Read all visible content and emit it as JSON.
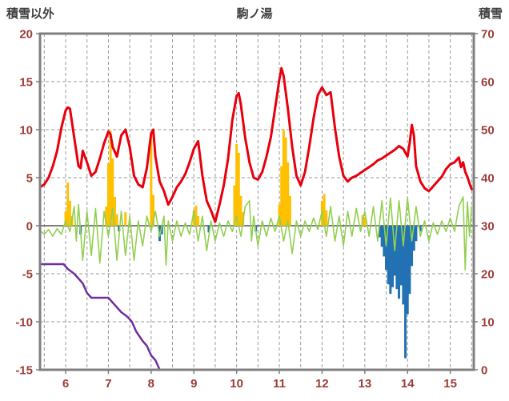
{
  "header": {
    "left_axis_title": "積雪以外",
    "chart_title": "駒ノ湯",
    "right_axis_title": "積雪"
  },
  "chart_data": {
    "type": "line",
    "title": "駒ノ湯",
    "left_axis_label": "積雪以外",
    "right_axis_label": "積雪",
    "x_range": [
      5.4,
      15.55
    ],
    "x_ticks": [
      6,
      7,
      8,
      9,
      10,
      11,
      12,
      13,
      14,
      15
    ],
    "x_grid_step": 0.5,
    "left_ylim": [
      -15,
      20
    ],
    "left_yticks": [
      20,
      15,
      10,
      5,
      0,
      -5,
      -10,
      -15
    ],
    "right_ylim": [
      0,
      70
    ],
    "right_yticks": [
      70,
      60,
      50,
      40,
      30,
      20,
      10,
      0
    ],
    "grid": true,
    "legend": "none",
    "colors": {
      "red_line": "#e8000d",
      "green_line": "#92d050",
      "orange_bars": "#ffc000",
      "blue_bars": "#2271b3",
      "purple_line": "#7030a0",
      "frame": "#7f7f7f",
      "grid": "#9a9a9a",
      "zero_line": "#7f7f7f",
      "tick_text": "#9c3d38",
      "title_text": "#3f3f3f"
    },
    "series": [
      {
        "name": "orange-bars",
        "type": "bar",
        "axis": "left",
        "color_key": "orange_bars",
        "points": [
          [
            6.0,
            1.5
          ],
          [
            6.05,
            4.5
          ],
          [
            6.1,
            2.6
          ],
          [
            6.15,
            1.0
          ],
          [
            6.95,
            2.0
          ],
          [
            7.0,
            6.5
          ],
          [
            7.05,
            9.9
          ],
          [
            7.1,
            7.0
          ],
          [
            7.15,
            3.0
          ],
          [
            7.2,
            1.2
          ],
          [
            7.4,
            1.4
          ],
          [
            8.0,
            9.7
          ],
          [
            8.05,
            3.2
          ],
          [
            9.0,
            1.6
          ],
          [
            9.05,
            2.1
          ],
          [
            9.1,
            1.0
          ],
          [
            9.95,
            4.2
          ],
          [
            10.0,
            8.5
          ],
          [
            10.05,
            7.6
          ],
          [
            10.1,
            3.1
          ],
          [
            10.15,
            1.4
          ],
          [
            11.0,
            2.2
          ],
          [
            11.05,
            6.2
          ],
          [
            11.1,
            10.0
          ],
          [
            11.15,
            9.2
          ],
          [
            11.2,
            6.6
          ],
          [
            11.25,
            3.1
          ],
          [
            12.0,
            2.6
          ],
          [
            12.05,
            3.3
          ],
          [
            12.1,
            1.6
          ],
          [
            12.95,
            1.1
          ],
          [
            13.0,
            0.9
          ]
        ]
      },
      {
        "name": "blue-bars",
        "type": "bar",
        "axis": "left",
        "color_key": "blue_bars",
        "points": [
          [
            6.35,
            -0.9
          ],
          [
            7.25,
            -0.6
          ],
          [
            8.2,
            -1.6
          ],
          [
            8.25,
            -0.9
          ],
          [
            9.35,
            -0.7
          ],
          [
            10.45,
            -0.6
          ],
          [
            13.35,
            -1.2
          ],
          [
            13.4,
            -2.2
          ],
          [
            13.45,
            -3.2
          ],
          [
            13.5,
            -4.6
          ],
          [
            13.55,
            -6.1
          ],
          [
            13.6,
            -7.1
          ],
          [
            13.65,
            -6.4
          ],
          [
            13.7,
            -5.2
          ],
          [
            13.75,
            -6.6
          ],
          [
            13.8,
            -7.6
          ],
          [
            13.85,
            -6.2
          ],
          [
            13.9,
            -8.2
          ],
          [
            13.95,
            -13.8
          ],
          [
            14.0,
            -9.2
          ],
          [
            14.05,
            -7.1
          ],
          [
            14.1,
            -4.2
          ],
          [
            14.15,
            -2.6
          ],
          [
            14.2,
            -1.6
          ],
          [
            14.3,
            -0.6
          ]
        ]
      },
      {
        "name": "green-line",
        "type": "line",
        "axis": "left",
        "color_key": "green_line",
        "width": 1.6,
        "points": [
          [
            5.4,
            -0.5
          ],
          [
            5.5,
            -0.9
          ],
          [
            5.6,
            -0.4
          ],
          [
            5.7,
            -1.1
          ],
          [
            5.8,
            -0.3
          ],
          [
            5.9,
            -0.9
          ],
          [
            6.0,
            0.5
          ],
          [
            6.1,
            -0.6
          ],
          [
            6.2,
            2.0
          ],
          [
            6.25,
            -1.6
          ],
          [
            6.3,
            2.2
          ],
          [
            6.4,
            -3.6
          ],
          [
            6.5,
            1.5
          ],
          [
            6.6,
            -3.1
          ],
          [
            6.7,
            1.8
          ],
          [
            6.8,
            -3.9
          ],
          [
            6.9,
            1.5
          ],
          [
            7.0,
            -1.1
          ],
          [
            7.1,
            1.8
          ],
          [
            7.2,
            -3.6
          ],
          [
            7.3,
            1.5
          ],
          [
            7.4,
            -3.1
          ],
          [
            7.5,
            1.0
          ],
          [
            7.6,
            -3.6
          ],
          [
            7.7,
            0.5
          ],
          [
            7.8,
            -2.1
          ],
          [
            7.9,
            1.0
          ],
          [
            8.0,
            -0.6
          ],
          [
            8.1,
            1.5
          ],
          [
            8.2,
            -1.1
          ],
          [
            8.3,
            1.0
          ],
          [
            8.35,
            -4.1
          ],
          [
            8.4,
            0.5
          ],
          [
            8.5,
            -1.6
          ],
          [
            8.6,
            0.5
          ],
          [
            8.7,
            -1.1
          ],
          [
            8.8,
            0.3
          ],
          [
            8.9,
            -0.9
          ],
          [
            9.0,
            1.5
          ],
          [
            9.1,
            -1.6
          ],
          [
            9.2,
            1.0
          ],
          [
            9.3,
            -2.6
          ],
          [
            9.4,
            0.5
          ],
          [
            9.5,
            -1.6
          ],
          [
            9.6,
            0.3
          ],
          [
            9.7,
            -1.1
          ],
          [
            9.8,
            0.5
          ],
          [
            9.9,
            -0.6
          ],
          [
            10.0,
            1.0
          ],
          [
            10.1,
            -1.1
          ],
          [
            10.2,
            2.0
          ],
          [
            10.3,
            2.6
          ],
          [
            10.35,
            -1.6
          ],
          [
            10.4,
            1.0
          ],
          [
            10.5,
            -2.1
          ],
          [
            10.6,
            0.5
          ],
          [
            10.7,
            -1.1
          ],
          [
            10.8,
            0.8
          ],
          [
            10.9,
            -0.6
          ],
          [
            11.0,
            1.0
          ],
          [
            11.1,
            -1.6
          ],
          [
            11.2,
            0.5
          ],
          [
            11.3,
            -2.9
          ],
          [
            11.4,
            0.5
          ],
          [
            11.5,
            -1.1
          ],
          [
            11.6,
            0.5
          ],
          [
            11.7,
            -0.6
          ],
          [
            11.8,
            0.8
          ],
          [
            11.9,
            -0.4
          ],
          [
            12.0,
            1.5
          ],
          [
            12.1,
            -1.1
          ],
          [
            12.2,
            2.0
          ],
          [
            12.3,
            -1.6
          ],
          [
            12.4,
            1.0
          ],
          [
            12.5,
            -2.1
          ],
          [
            12.6,
            1.5
          ],
          [
            12.7,
            -1.1
          ],
          [
            12.8,
            1.8
          ],
          [
            12.9,
            -0.6
          ],
          [
            13.0,
            1.5
          ],
          [
            13.1,
            -1.1
          ],
          [
            13.2,
            2.0
          ],
          [
            13.3,
            -1.6
          ],
          [
            13.4,
            2.6
          ],
          [
            13.5,
            -2.1
          ],
          [
            13.6,
            2.9
          ],
          [
            13.7,
            -2.6
          ],
          [
            13.8,
            2.6
          ],
          [
            13.9,
            -2.1
          ],
          [
            14.0,
            2.9
          ],
          [
            14.1,
            -1.6
          ],
          [
            14.2,
            2.0
          ],
          [
            14.3,
            -1.1
          ],
          [
            14.4,
            0.5
          ],
          [
            14.5,
            -1.6
          ],
          [
            14.6,
            0.3
          ],
          [
            14.7,
            -0.9
          ],
          [
            14.8,
            0.5
          ],
          [
            14.9,
            -0.6
          ],
          [
            15.0,
            0.8
          ],
          [
            15.1,
            -0.6
          ],
          [
            15.2,
            2.0
          ],
          [
            15.3,
            3.0
          ],
          [
            15.35,
            -4.6
          ],
          [
            15.4,
            2.5
          ],
          [
            15.45,
            -1.1
          ],
          [
            15.5,
            2.0
          ]
        ]
      },
      {
        "name": "purple-line",
        "type": "line",
        "axis": "right",
        "color_key": "purple_line",
        "width": 2.5,
        "points": [
          [
            5.4,
            22
          ],
          [
            5.95,
            22
          ],
          [
            6.05,
            21
          ],
          [
            6.2,
            20
          ],
          [
            6.3,
            19
          ],
          [
            6.4,
            18
          ],
          [
            6.5,
            16
          ],
          [
            6.6,
            15
          ],
          [
            7.0,
            15
          ],
          [
            7.1,
            14
          ],
          [
            7.2,
            13
          ],
          [
            7.3,
            12
          ],
          [
            7.45,
            11
          ],
          [
            7.55,
            10
          ],
          [
            7.65,
            8
          ],
          [
            7.8,
            6
          ],
          [
            7.9,
            5
          ],
          [
            8.0,
            3
          ],
          [
            8.1,
            2
          ],
          [
            8.2,
            0
          ],
          [
            15.5,
            0
          ]
        ]
      },
      {
        "name": "red-line",
        "type": "line",
        "axis": "left",
        "color_key": "red_line",
        "width": 3,
        "points": [
          [
            5.4,
            4.0
          ],
          [
            5.5,
            4.3
          ],
          [
            5.6,
            5.0
          ],
          [
            5.7,
            6.2
          ],
          [
            5.8,
            7.8
          ],
          [
            5.9,
            10.2
          ],
          [
            6.0,
            12.0
          ],
          [
            6.05,
            12.3
          ],
          [
            6.1,
            12.2
          ],
          [
            6.2,
            9.2
          ],
          [
            6.3,
            6.2
          ],
          [
            6.35,
            6.0
          ],
          [
            6.4,
            7.8
          ],
          [
            6.45,
            7.2
          ],
          [
            6.5,
            6.6
          ],
          [
            6.6,
            5.2
          ],
          [
            6.7,
            5.6
          ],
          [
            6.8,
            7.0
          ],
          [
            6.9,
            8.6
          ],
          [
            7.0,
            9.8
          ],
          [
            7.05,
            9.5
          ],
          [
            7.1,
            8.2
          ],
          [
            7.2,
            7.2
          ],
          [
            7.3,
            9.4
          ],
          [
            7.4,
            10.0
          ],
          [
            7.5,
            8.2
          ],
          [
            7.6,
            5.2
          ],
          [
            7.7,
            4.3
          ],
          [
            7.8,
            4.0
          ],
          [
            7.9,
            6.0
          ],
          [
            8.0,
            9.6
          ],
          [
            8.05,
            10.0
          ],
          [
            8.1,
            7.2
          ],
          [
            8.2,
            4.6
          ],
          [
            8.3,
            3.6
          ],
          [
            8.4,
            2.2
          ],
          [
            8.5,
            3.0
          ],
          [
            8.6,
            4.0
          ],
          [
            8.7,
            4.6
          ],
          [
            8.8,
            5.4
          ],
          [
            8.9,
            6.6
          ],
          [
            9.0,
            8.0
          ],
          [
            9.1,
            8.8
          ],
          [
            9.2,
            5.2
          ],
          [
            9.3,
            2.6
          ],
          [
            9.4,
            1.6
          ],
          [
            9.5,
            0.4
          ],
          [
            9.6,
            2.2
          ],
          [
            9.7,
            4.2
          ],
          [
            9.8,
            7.0
          ],
          [
            9.9,
            11.0
          ],
          [
            10.0,
            13.5
          ],
          [
            10.05,
            13.8
          ],
          [
            10.1,
            12.6
          ],
          [
            10.2,
            9.2
          ],
          [
            10.3,
            6.6
          ],
          [
            10.4,
            5.0
          ],
          [
            10.5,
            4.8
          ],
          [
            10.6,
            5.6
          ],
          [
            10.7,
            7.2
          ],
          [
            10.8,
            9.2
          ],
          [
            10.9,
            12.2
          ],
          [
            11.0,
            15.2
          ],
          [
            11.05,
            16.4
          ],
          [
            11.1,
            15.6
          ],
          [
            11.2,
            12.2
          ],
          [
            11.3,
            8.2
          ],
          [
            11.4,
            5.2
          ],
          [
            11.5,
            4.2
          ],
          [
            11.6,
            5.6
          ],
          [
            11.7,
            8.2
          ],
          [
            11.8,
            11.2
          ],
          [
            11.9,
            13.6
          ],
          [
            12.0,
            14.4
          ],
          [
            12.1,
            13.6
          ],
          [
            12.2,
            13.9
          ],
          [
            12.3,
            10.2
          ],
          [
            12.4,
            7.2
          ],
          [
            12.5,
            5.2
          ],
          [
            12.6,
            4.6
          ],
          [
            12.7,
            5.0
          ],
          [
            12.8,
            5.2
          ],
          [
            12.9,
            5.5
          ],
          [
            13.0,
            5.8
          ],
          [
            13.1,
            6.1
          ],
          [
            13.2,
            6.4
          ],
          [
            13.3,
            6.8
          ],
          [
            13.4,
            7.0
          ],
          [
            13.5,
            7.3
          ],
          [
            13.6,
            7.6
          ],
          [
            13.7,
            7.9
          ],
          [
            13.8,
            8.3
          ],
          [
            13.9,
            8.0
          ],
          [
            14.0,
            7.2
          ],
          [
            14.05,
            8.6
          ],
          [
            14.1,
            10.5
          ],
          [
            14.15,
            9.4
          ],
          [
            14.2,
            6.2
          ],
          [
            14.3,
            4.6
          ],
          [
            14.4,
            3.9
          ],
          [
            14.5,
            3.6
          ],
          [
            14.6,
            4.1
          ],
          [
            14.7,
            4.6
          ],
          [
            14.8,
            5.1
          ],
          [
            14.9,
            5.9
          ],
          [
            15.0,
            6.4
          ],
          [
            15.1,
            6.6
          ],
          [
            15.2,
            7.1
          ],
          [
            15.25,
            6.1
          ],
          [
            15.3,
            6.6
          ],
          [
            15.35,
            5.6
          ],
          [
            15.4,
            5.1
          ],
          [
            15.45,
            4.4
          ],
          [
            15.5,
            3.8
          ]
        ]
      }
    ]
  }
}
